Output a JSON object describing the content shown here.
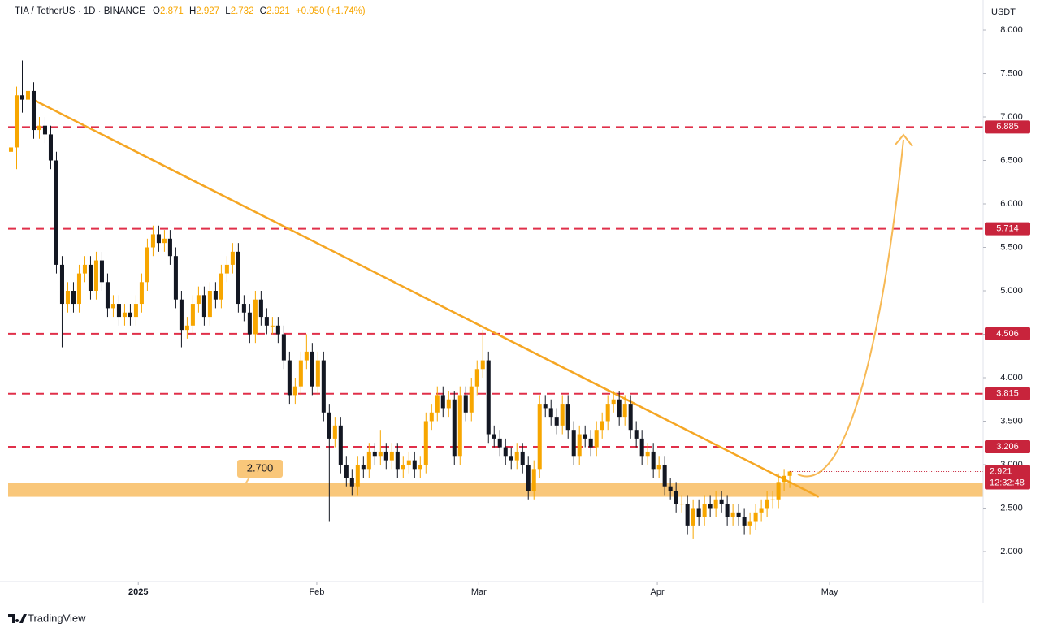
{
  "header": {
    "symbol": "TIA / TetherUS · 1D · BINANCE",
    "o_label": "O",
    "o": "2.871",
    "h_label": "H",
    "h": "2.927",
    "l_label": "L",
    "l": "2.732",
    "c_label": "C",
    "c": "2.921",
    "change": "+0.050 (+1.74%)"
  },
  "footer": {
    "brand": "TradingView"
  },
  "chart_data": {
    "type": "candlestick",
    "y_axis_unit": "USDT",
    "up_color": "#f7a600",
    "down_color": "#131722",
    "open": [
      6.6,
      6.65,
      7.25,
      7.2,
      7.3,
      6.85,
      6.9,
      6.8,
      6.5,
      5.3,
      4.85,
      5.0,
      4.85,
      5.2,
      5.3,
      5.0,
      5.35,
      5.1,
      4.8,
      4.85,
      4.7,
      4.75,
      4.7,
      4.85,
      5.1,
      5.5,
      5.65,
      5.55,
      5.6,
      5.4,
      4.9,
      4.55,
      4.6,
      4.85,
      4.95,
      4.7,
      5.0,
      4.9,
      5.2,
      5.3,
      5.45,
      4.85,
      4.75,
      4.5,
      4.9,
      4.7,
      4.6,
      4.6,
      4.5,
      4.2,
      3.8,
      3.9,
      4.2,
      4.3,
      3.9,
      4.2,
      3.6,
      3.3,
      3.45,
      3.0,
      2.85,
      2.75,
      3.0,
      2.95,
      3.15,
      3.1,
      3.15,
      3.05,
      3.15,
      2.95,
      3.0,
      3.05,
      2.95,
      3.0,
      3.5,
      3.6,
      3.8,
      3.65,
      3.75,
      3.1,
      3.8,
      3.6,
      3.9,
      4.1,
      4.2,
      3.35,
      3.3,
      3.2,
      3.1,
      3.05,
      3.15,
      3.0,
      2.7,
      2.95,
      3.7,
      3.65,
      3.55,
      3.45,
      3.7,
      3.4,
      3.1,
      3.35,
      3.3,
      3.2,
      3.4,
      3.5,
      3.7,
      3.75,
      3.55,
      3.7,
      3.4,
      3.3,
      3.1,
      3.15,
      2.95,
      3.0,
      2.75,
      2.7,
      2.55,
      2.55,
      2.3,
      2.5,
      2.4,
      2.55,
      2.5,
      2.6,
      2.55,
      2.4,
      2.45,
      2.4,
      2.3,
      2.35,
      2.45,
      2.5,
      2.6,
      2.6,
      2.8,
      2.871
    ],
    "high": [
      6.75,
      7.35,
      7.65,
      7.4,
      7.4,
      7.0,
      7.0,
      6.9,
      6.6,
      5.4,
      5.1,
      5.1,
      5.3,
      5.4,
      5.4,
      5.45,
      5.45,
      5.2,
      4.95,
      4.95,
      4.85,
      4.85,
      4.95,
      5.2,
      5.6,
      5.75,
      5.75,
      5.7,
      5.7,
      5.5,
      5.0,
      4.7,
      4.95,
      5.05,
      5.05,
      5.1,
      5.1,
      5.3,
      5.4,
      5.55,
      5.55,
      4.95,
      4.85,
      5.0,
      5.0,
      4.8,
      4.7,
      4.7,
      4.6,
      4.3,
      4.0,
      4.3,
      4.5,
      4.4,
      4.3,
      4.3,
      3.7,
      3.55,
      3.55,
      3.1,
      2.95,
      3.1,
      3.1,
      3.25,
      3.25,
      3.4,
      3.25,
      3.25,
      3.25,
      3.1,
      3.15,
      3.15,
      3.1,
      3.6,
      3.7,
      3.9,
      3.9,
      3.85,
      3.85,
      3.9,
      3.9,
      4.0,
      4.2,
      4.55,
      4.3,
      3.45,
      3.4,
      3.3,
      3.2,
      3.25,
      3.25,
      3.1,
      3.05,
      3.8,
      3.8,
      3.75,
      3.65,
      3.8,
      3.8,
      3.5,
      3.45,
      3.45,
      3.4,
      3.5,
      3.6,
      3.8,
      3.85,
      3.85,
      3.8,
      3.8,
      3.5,
      3.4,
      3.25,
      3.25,
      3.1,
      3.1,
      2.85,
      2.8,
      2.65,
      2.65,
      2.6,
      2.6,
      2.65,
      2.65,
      2.7,
      2.7,
      2.65,
      2.55,
      2.55,
      2.5,
      2.45,
      2.55,
      2.6,
      2.7,
      2.7,
      2.9,
      2.95,
      2.927
    ],
    "low": [
      6.25,
      6.4,
      7.05,
      7.1,
      6.75,
      6.75,
      6.7,
      6.4,
      5.2,
      4.35,
      4.75,
      4.75,
      4.75,
      5.1,
      4.9,
      4.9,
      5.0,
      4.7,
      4.7,
      4.6,
      4.6,
      4.6,
      4.6,
      4.75,
      5.0,
      5.4,
      5.45,
      5.45,
      5.3,
      4.8,
      4.35,
      4.45,
      4.5,
      4.75,
      4.6,
      4.6,
      4.8,
      4.8,
      5.1,
      5.2,
      4.75,
      4.65,
      4.4,
      4.4,
      4.6,
      4.5,
      4.5,
      4.4,
      4.1,
      3.7,
      3.7,
      3.8,
      4.1,
      3.8,
      3.8,
      3.5,
      2.35,
      3.2,
      2.9,
      2.75,
      2.65,
      2.65,
      2.85,
      2.85,
      3.0,
      3.0,
      2.95,
      2.95,
      2.85,
      2.85,
      2.9,
      2.85,
      2.85,
      2.9,
      3.4,
      3.5,
      3.55,
      3.55,
      3.0,
      3.0,
      3.5,
      3.5,
      3.8,
      4.0,
      3.25,
      3.2,
      3.1,
      3.0,
      2.95,
      2.95,
      2.9,
      2.6,
      2.6,
      2.85,
      3.55,
      3.45,
      3.35,
      3.35,
      3.3,
      3.0,
      3.0,
      3.2,
      3.1,
      3.1,
      3.3,
      3.4,
      3.6,
      3.45,
      3.45,
      3.3,
      3.2,
      3.0,
      3.0,
      2.85,
      2.85,
      2.65,
      2.6,
      2.45,
      2.45,
      2.2,
      2.15,
      2.3,
      2.3,
      2.4,
      2.4,
      2.45,
      2.3,
      2.3,
      2.3,
      2.2,
      2.2,
      2.25,
      2.35,
      2.4,
      2.5,
      2.5,
      2.7,
      2.732
    ],
    "close": [
      6.65,
      7.25,
      7.2,
      7.3,
      6.85,
      6.9,
      6.8,
      6.5,
      5.3,
      4.85,
      5.0,
      4.85,
      5.2,
      5.3,
      5.0,
      5.35,
      5.1,
      4.8,
      4.85,
      4.7,
      4.75,
      4.7,
      4.85,
      5.1,
      5.5,
      5.65,
      5.55,
      5.6,
      5.4,
      4.9,
      4.55,
      4.6,
      4.85,
      4.95,
      4.7,
      5.0,
      4.9,
      5.2,
      5.3,
      5.45,
      4.85,
      4.75,
      4.5,
      4.9,
      4.7,
      4.6,
      4.6,
      4.5,
      4.2,
      3.8,
      3.9,
      4.2,
      4.3,
      3.9,
      4.2,
      3.6,
      3.3,
      3.45,
      3.0,
      2.85,
      2.75,
      3.0,
      2.95,
      3.15,
      3.1,
      3.15,
      3.05,
      3.15,
      2.95,
      3.0,
      3.05,
      2.95,
      3.0,
      3.5,
      3.6,
      3.8,
      3.65,
      3.75,
      3.1,
      3.8,
      3.6,
      3.9,
      4.1,
      4.2,
      3.35,
      3.3,
      3.2,
      3.1,
      3.05,
      3.15,
      3.0,
      2.7,
      2.95,
      3.7,
      3.65,
      3.55,
      3.45,
      3.7,
      3.4,
      3.1,
      3.35,
      3.3,
      3.2,
      3.4,
      3.5,
      3.7,
      3.75,
      3.55,
      3.7,
      3.4,
      3.3,
      3.1,
      3.15,
      2.95,
      3.0,
      2.75,
      2.7,
      2.55,
      2.55,
      2.3,
      2.5,
      2.4,
      2.55,
      2.5,
      2.6,
      2.55,
      2.4,
      2.45,
      2.4,
      2.3,
      2.35,
      2.45,
      2.5,
      2.6,
      2.6,
      2.8,
      2.871,
      2.921
    ],
    "xlim": [
      -0.5,
      171
    ],
    "xticks": [
      {
        "value": 22.4,
        "label": "2025"
      },
      {
        "value": 53.8,
        "label": "Feb"
      },
      {
        "value": 82.3,
        "label": "Mar"
      },
      {
        "value": 113.7,
        "label": "Apr"
      },
      {
        "value": 144.0,
        "label": "May"
      }
    ],
    "ylim": [
      1.654,
      8.346
    ],
    "yticks": [
      {
        "value": 2,
        "label": "2.000"
      },
      {
        "value": 2.5,
        "label": "2.500"
      },
      {
        "value": 3,
        "label": "3.000"
      },
      {
        "value": 3.5,
        "label": "3.500"
      },
      {
        "value": 4,
        "label": "4.000"
      },
      {
        "value": 4.5,
        "label": "4.500"
      },
      {
        "value": 5,
        "label": "5.000"
      },
      {
        "value": 5.5,
        "label": "5.500"
      },
      {
        "value": 6,
        "label": "6.000"
      },
      {
        "value": 6.5,
        "label": "6.500"
      },
      {
        "value": 7,
        "label": "7.000"
      },
      {
        "value": 7.5,
        "label": "7.500"
      },
      {
        "value": 8,
        "label": "8.000"
      }
    ],
    "levels_color": "#e0304a",
    "levels": [
      {
        "value": 6.885,
        "label": "6.885"
      },
      {
        "value": 5.714,
        "label": "5.714"
      },
      {
        "value": 4.506,
        "label": "4.506"
      },
      {
        "value": 3.815,
        "label": "3.815"
      },
      {
        "value": 3.206,
        "label": "3.206"
      }
    ],
    "support": {
      "value": 2.7,
      "label": "2.700",
      "low": 2.63,
      "high": 2.79,
      "color": "#f9c77a"
    },
    "trendline": {
      "x": [
        3.9,
        142.1
      ],
      "y": [
        7.2,
        2.63
      ],
      "color": "#f5a623"
    },
    "last_price": {
      "value": 2.921,
      "label": "2.921",
      "countdown": "12:32:48"
    }
  }
}
